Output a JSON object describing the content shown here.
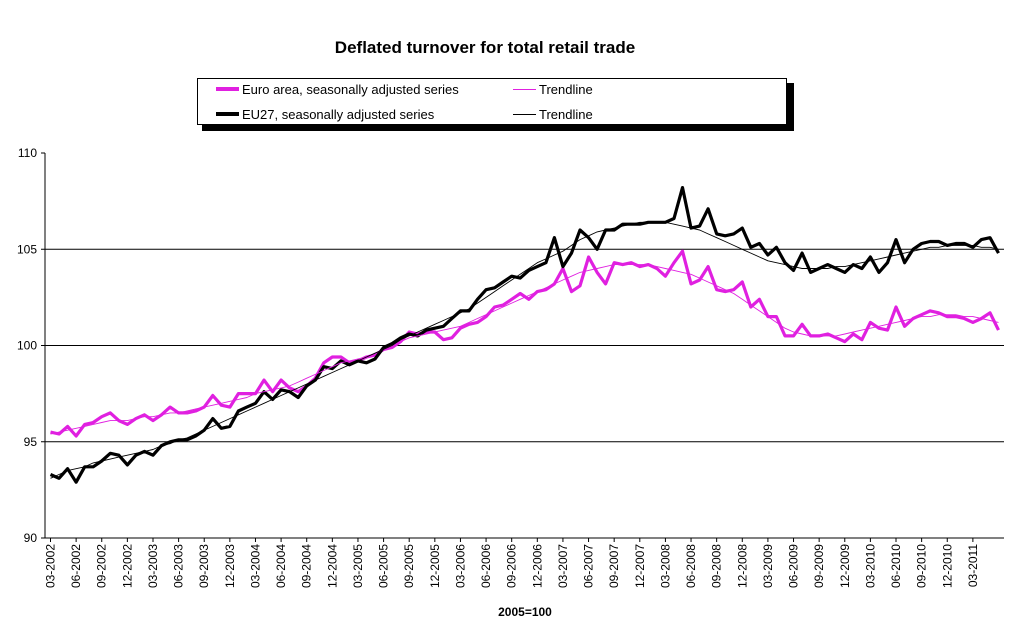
{
  "chart_data": {
    "type": "line",
    "title": "Deflated turnover for total retail trade",
    "xlabel": "2005=100",
    "ylabel": "",
    "ylim": [
      90,
      110
    ],
    "yticks": [
      90,
      95,
      100,
      105,
      110
    ],
    "gridlines": [
      95,
      100,
      105
    ],
    "legend_position": "top",
    "x_tick_labels": [
      "03-2002",
      "06-2002",
      "09-2002",
      "12-2002",
      "03-2003",
      "06-2003",
      "09-2003",
      "12-2003",
      "03-2004",
      "06-2004",
      "09-2004",
      "12-2004",
      "03-2005",
      "06-2005",
      "09-2005",
      "12-2005",
      "03-2006",
      "06-2006",
      "09-2006",
      "12-2006",
      "03-2007",
      "06-2007",
      "09-2007",
      "12-2007",
      "03-2008",
      "06-2008",
      "09-2008",
      "12-2008",
      "03-2009",
      "06-2009",
      "09-2009",
      "12-2009",
      "03-2010",
      "06-2010",
      "09-2010",
      "12-2010",
      "03-2011"
    ],
    "series": [
      {
        "name": "Euro area, seasonally adjusted series",
        "color": "#e020e0",
        "kind": "thick",
        "values": [
          95.5,
          95.4,
          95.8,
          95.3,
          95.9,
          96.0,
          96.3,
          96.5,
          96.1,
          95.9,
          96.2,
          96.4,
          96.1,
          96.4,
          96.8,
          96.5,
          96.5,
          96.6,
          96.8,
          97.4,
          96.9,
          96.8,
          97.5,
          97.5,
          97.5,
          98.2,
          97.6,
          98.2,
          97.8,
          97.6,
          97.9,
          98.3,
          99.1,
          99.4,
          99.4,
          99.1,
          99.2,
          99.4,
          99.5,
          99.8,
          99.9,
          100.2,
          100.7,
          100.6,
          100.7,
          100.7,
          100.3,
          100.4,
          100.9,
          101.1,
          101.2,
          101.5,
          102.0,
          102.1,
          102.4,
          102.7,
          102.4,
          102.8,
          102.9,
          103.2,
          104.0,
          102.8,
          103.1,
          104.6,
          103.8,
          103.2,
          104.3,
          104.2,
          104.3,
          104.1,
          104.2,
          104.0,
          103.6,
          104.3,
          104.9,
          103.2,
          103.4,
          104.1,
          102.9,
          102.8,
          102.9,
          103.3,
          102.0,
          102.4,
          101.5,
          101.5,
          100.5,
          100.5,
          101.1,
          100.5,
          100.5,
          100.6,
          100.4,
          100.2,
          100.6,
          100.3,
          101.2,
          100.9,
          100.8,
          102.0,
          101.0,
          101.4,
          101.6,
          101.8,
          101.7,
          101.5,
          101.5,
          101.4,
          101.2,
          101.4,
          101.7,
          100.8
        ]
      },
      {
        "name": "Trendline",
        "color": "#e020e0",
        "kind": "thin",
        "values": [
          95.4,
          95.5,
          95.6,
          95.7,
          95.8,
          95.9,
          96.0,
          96.1,
          96.1,
          96.1,
          96.2,
          96.3,
          96.3,
          96.4,
          96.5,
          96.5,
          96.6,
          96.7,
          96.8,
          96.9,
          97.0,
          97.1,
          97.2,
          97.3,
          97.5,
          97.6,
          97.7,
          97.8,
          97.9,
          98.1,
          98.3,
          98.5,
          98.7,
          98.9,
          99.1,
          99.2,
          99.3,
          99.4,
          99.6,
          99.8,
          100.0,
          100.2,
          100.4,
          100.5,
          100.6,
          100.7,
          100.8,
          100.9,
          101.0,
          101.2,
          101.4,
          101.6,
          101.8,
          102.0,
          102.2,
          102.4,
          102.6,
          102.8,
          103.0,
          103.2,
          103.4,
          103.6,
          103.8,
          103.9,
          104.0,
          104.1,
          104.2,
          104.2,
          104.2,
          104.2,
          104.2,
          104.1,
          104.0,
          103.9,
          103.8,
          103.7,
          103.5,
          103.3,
          103.1,
          102.9,
          102.7,
          102.4,
          102.1,
          101.8,
          101.5,
          101.2,
          100.9,
          100.7,
          100.6,
          100.5,
          100.5,
          100.5,
          100.5,
          100.6,
          100.7,
          100.8,
          100.9,
          101.0,
          101.1,
          101.2,
          101.3,
          101.4,
          101.5,
          101.5,
          101.6,
          101.6,
          101.6,
          101.5,
          101.5,
          101.4,
          101.3,
          101.2
        ]
      },
      {
        "name": "EU27, seasonally adjusted series",
        "color": "#000000",
        "kind": "thick",
        "values": [
          93.3,
          93.1,
          93.6,
          92.9,
          93.7,
          93.7,
          94.0,
          94.4,
          94.3,
          93.8,
          94.3,
          94.5,
          94.3,
          94.8,
          95.0,
          95.1,
          95.1,
          95.3,
          95.6,
          96.2,
          95.7,
          95.8,
          96.6,
          96.8,
          97.0,
          97.6,
          97.2,
          97.7,
          97.6,
          97.3,
          97.9,
          98.2,
          98.9,
          98.8,
          99.2,
          99.0,
          99.2,
          99.1,
          99.3,
          99.9,
          100.1,
          100.4,
          100.6,
          100.5,
          100.8,
          100.9,
          101.0,
          101.4,
          101.8,
          101.8,
          102.4,
          102.9,
          103.0,
          103.3,
          103.6,
          103.5,
          103.9,
          104.1,
          104.3,
          105.6,
          104.1,
          104.8,
          106.0,
          105.6,
          105.0,
          106.0,
          106.0,
          106.3,
          106.3,
          106.3,
          106.4,
          106.4,
          106.4,
          106.6,
          108.2,
          106.1,
          106.2,
          107.1,
          105.8,
          105.7,
          105.8,
          106.1,
          105.1,
          105.3,
          104.7,
          105.1,
          104.3,
          103.9,
          104.8,
          103.8,
          104.0,
          104.2,
          104.0,
          103.8,
          104.2,
          104.0,
          104.6,
          103.8,
          104.3,
          105.5,
          104.3,
          105.0,
          105.3,
          105.4,
          105.4,
          105.2,
          105.3,
          105.3,
          105.1,
          105.5,
          105.6,
          104.8
        ]
      },
      {
        "name": "Trendline",
        "color": "#000000",
        "kind": "thin",
        "values": [
          93.1,
          93.3,
          93.5,
          93.6,
          93.7,
          93.9,
          94.0,
          94.1,
          94.2,
          94.3,
          94.4,
          94.5,
          94.6,
          94.8,
          94.9,
          95.1,
          95.2,
          95.4,
          95.6,
          95.8,
          96.0,
          96.2,
          96.4,
          96.6,
          96.8,
          97.0,
          97.2,
          97.4,
          97.6,
          97.8,
          98.0,
          98.2,
          98.4,
          98.6,
          98.8,
          99.0,
          99.2,
          99.4,
          99.6,
          99.8,
          100.0,
          100.3,
          100.5,
          100.7,
          100.9,
          101.1,
          101.3,
          101.5,
          101.7,
          101.9,
          102.2,
          102.5,
          102.8,
          103.1,
          103.4,
          103.7,
          104.0,
          104.3,
          104.5,
          104.7,
          104.9,
          105.2,
          105.5,
          105.7,
          105.9,
          106.0,
          106.1,
          106.2,
          106.3,
          106.4,
          106.4,
          106.4,
          106.4,
          106.3,
          106.2,
          106.1,
          106.0,
          105.8,
          105.6,
          105.4,
          105.2,
          105.0,
          104.8,
          104.6,
          104.4,
          104.3,
          104.2,
          104.1,
          104.0,
          104.0,
          104.0,
          104.0,
          104.1,
          104.1,
          104.2,
          104.3,
          104.4,
          104.5,
          104.6,
          104.7,
          104.8,
          104.9,
          105.0,
          105.1,
          105.1,
          105.2,
          105.2,
          105.2,
          105.2,
          105.1,
          105.1,
          105.0
        ]
      }
    ]
  },
  "legend": {
    "items": [
      {
        "label": "Euro area, seasonally adjusted series"
      },
      {
        "label": "Trendline"
      },
      {
        "label": "EU27, seasonally adjusted series"
      },
      {
        "label": "Trendline"
      }
    ]
  }
}
